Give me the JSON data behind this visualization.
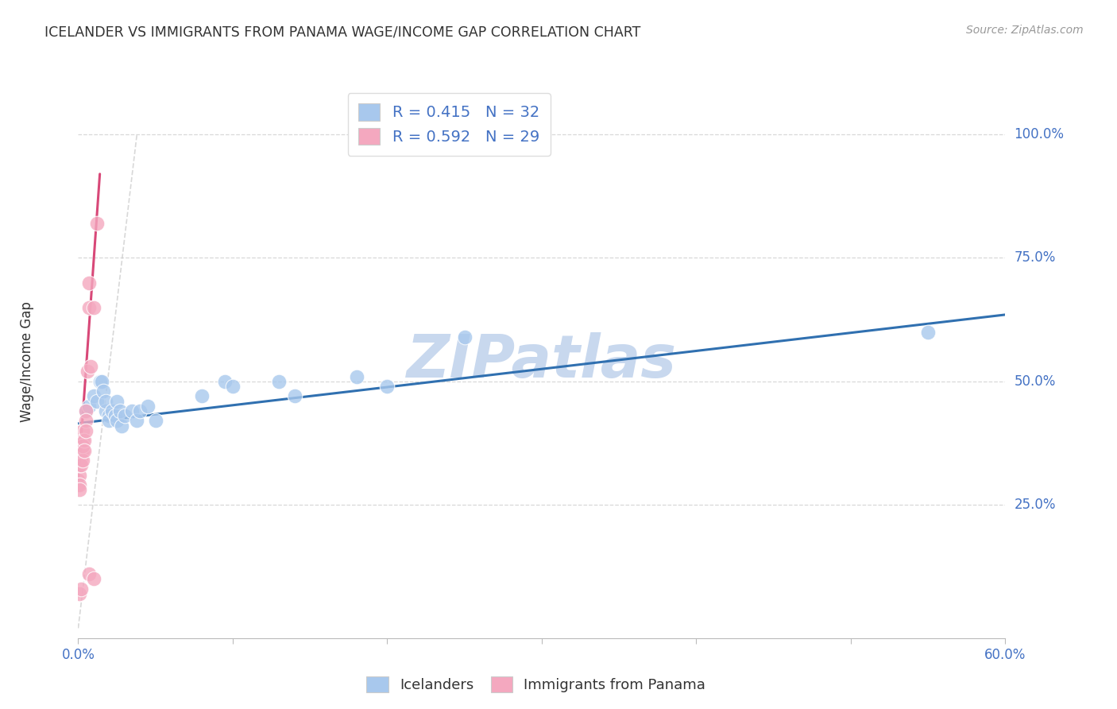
{
  "title": "ICELANDER VS IMMIGRANTS FROM PANAMA WAGE/INCOME GAP CORRELATION CHART",
  "source": "Source: ZipAtlas.com",
  "ylabel": "Wage/Income Gap",
  "watermark": "ZIPatlas",
  "xlim": [
    0.0,
    0.6
  ],
  "ylim": [
    -0.02,
    1.1
  ],
  "blue_R": "0.415",
  "blue_N": "32",
  "pink_R": "0.592",
  "pink_N": "29",
  "legend_label_blue": "Icelanders",
  "legend_label_pink": "Immigrants from Panama",
  "blue_scatter": [
    [
      0.005,
      0.44
    ],
    [
      0.007,
      0.45
    ],
    [
      0.01,
      0.47
    ],
    [
      0.012,
      0.46
    ],
    [
      0.014,
      0.5
    ],
    [
      0.015,
      0.5
    ],
    [
      0.016,
      0.48
    ],
    [
      0.018,
      0.44
    ],
    [
      0.018,
      0.46
    ],
    [
      0.02,
      0.43
    ],
    [
      0.02,
      0.42
    ],
    [
      0.022,
      0.44
    ],
    [
      0.024,
      0.43
    ],
    [
      0.025,
      0.46
    ],
    [
      0.025,
      0.42
    ],
    [
      0.027,
      0.44
    ],
    [
      0.028,
      0.41
    ],
    [
      0.03,
      0.43
    ],
    [
      0.035,
      0.44
    ],
    [
      0.038,
      0.42
    ],
    [
      0.04,
      0.44
    ],
    [
      0.045,
      0.45
    ],
    [
      0.05,
      0.42
    ],
    [
      0.08,
      0.47
    ],
    [
      0.095,
      0.5
    ],
    [
      0.1,
      0.49
    ],
    [
      0.13,
      0.5
    ],
    [
      0.14,
      0.47
    ],
    [
      0.18,
      0.51
    ],
    [
      0.2,
      0.49
    ],
    [
      0.25,
      0.59
    ],
    [
      0.55,
      0.6
    ]
  ],
  "pink_scatter": [
    [
      0.0,
      0.3
    ],
    [
      0.0,
      0.29
    ],
    [
      0.001,
      0.31
    ],
    [
      0.001,
      0.33
    ],
    [
      0.001,
      0.29
    ],
    [
      0.001,
      0.28
    ],
    [
      0.002,
      0.34
    ],
    [
      0.002,
      0.36
    ],
    [
      0.002,
      0.33
    ],
    [
      0.003,
      0.4
    ],
    [
      0.003,
      0.38
    ],
    [
      0.003,
      0.36
    ],
    [
      0.003,
      0.34
    ],
    [
      0.003,
      0.37
    ],
    [
      0.004,
      0.38
    ],
    [
      0.004,
      0.36
    ],
    [
      0.005,
      0.44
    ],
    [
      0.005,
      0.42
    ],
    [
      0.005,
      0.4
    ],
    [
      0.006,
      0.52
    ],
    [
      0.007,
      0.65
    ],
    [
      0.007,
      0.7
    ],
    [
      0.008,
      0.53
    ],
    [
      0.01,
      0.65
    ],
    [
      0.012,
      0.82
    ],
    [
      0.001,
      0.07
    ],
    [
      0.002,
      0.08
    ],
    [
      0.007,
      0.11
    ],
    [
      0.01,
      0.1
    ]
  ],
  "blue_line_x": [
    0.0,
    0.6
  ],
  "blue_line_y": [
    0.415,
    0.635
  ],
  "pink_line_x": [
    0.0,
    0.014
  ],
  "pink_line_y": [
    0.3,
    0.92
  ],
  "diag_line_x": [
    0.0,
    0.038
  ],
  "diag_line_y": [
    0.0,
    1.0
  ],
  "blue_color": "#A8C8ED",
  "pink_color": "#F4A8BF",
  "blue_line_color": "#3070B0",
  "pink_line_color": "#D84878",
  "diag_color": "#C8C8C8",
  "title_color": "#333333",
  "source_color": "#999999",
  "axis_label_color": "#4472C4",
  "watermark_color": "#C8D8EE",
  "grid_color": "#D8D8D8",
  "background_color": "#FFFFFF",
  "ytick_positions": [
    0.25,
    0.5,
    0.75,
    1.0
  ],
  "ytick_labels": [
    "25.0%",
    "50.0%",
    "75.0%",
    "100.0%"
  ]
}
